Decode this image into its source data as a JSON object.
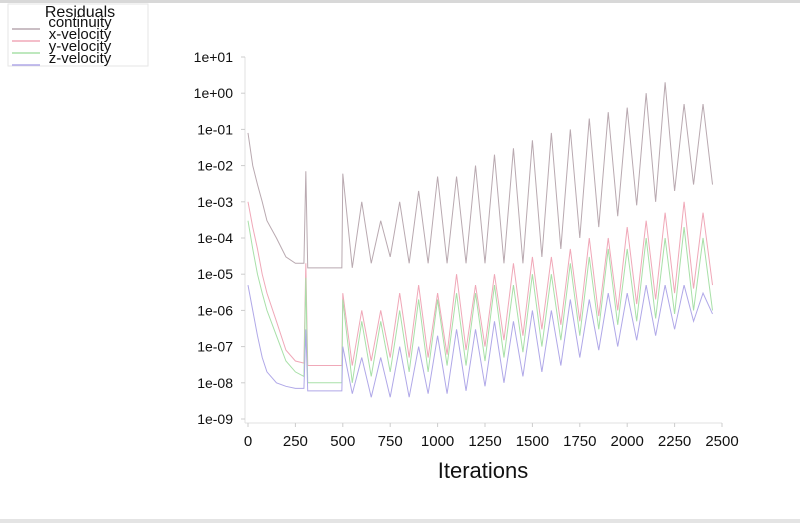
{
  "chart_data": {
    "type": "line",
    "legend_title": "Residuals",
    "x_label": "Iterations",
    "xlim": [
      0,
      2500
    ],
    "xticks": [
      0,
      250,
      500,
      750,
      1000,
      1250,
      1500,
      1750,
      2000,
      2250,
      2500
    ],
    "y_scale": "log",
    "ylim": [
      1e-09,
      10
    ],
    "yticks": [
      {
        "value": 1e-09,
        "label": "1e-09"
      },
      {
        "value": 1e-08,
        "label": "1e-08"
      },
      {
        "value": 1e-07,
        "label": "1e-07"
      },
      {
        "value": 1e-06,
        "label": "1e-06"
      },
      {
        "value": 1e-05,
        "label": "1e-05"
      },
      {
        "value": 0.0001,
        "label": "1e-04"
      },
      {
        "value": 0.001,
        "label": "1e-03"
      },
      {
        "value": 0.01,
        "label": "1e-02"
      },
      {
        "value": 0.1,
        "label": "1e-01"
      },
      {
        "value": 1,
        "label": "1e+00"
      },
      {
        "value": 10,
        "label": "1e+01"
      }
    ],
    "x": [
      0,
      25,
      50,
      75,
      100,
      150,
      200,
      250,
      295,
      305,
      315,
      400,
      495,
      500,
      550,
      600,
      650,
      700,
      750,
      800,
      850,
      900,
      950,
      1000,
      1050,
      1100,
      1150,
      1200,
      1250,
      1300,
      1350,
      1400,
      1450,
      1500,
      1550,
      1600,
      1650,
      1700,
      1750,
      1800,
      1850,
      1900,
      1950,
      2000,
      2050,
      2100,
      2150,
      2200,
      2250,
      2300,
      2350,
      2400,
      2450
    ],
    "series": [
      {
        "name": "continuity",
        "color": "#b9a9b0",
        "values": [
          0.08,
          0.01,
          0.003,
          0.001,
          0.0003,
          0.0001,
          3e-05,
          2e-05,
          2e-05,
          0.007,
          1.5e-05,
          1.5e-05,
          1.5e-05,
          0.006,
          1.5e-05,
          0.001,
          2e-05,
          0.0003,
          3e-05,
          0.001,
          2e-05,
          0.002,
          2e-05,
          0.005,
          2e-05,
          0.005,
          2e-05,
          0.01,
          2e-05,
          0.02,
          2e-05,
          0.03,
          2e-05,
          0.05,
          3e-05,
          0.08,
          5e-05,
          0.1,
          0.0001,
          0.2,
          0.0002,
          0.3,
          0.0004,
          0.4,
          0.0008,
          1,
          0.001,
          2,
          0.002,
          0.5,
          0.003,
          0.5,
          0.003
        ]
      },
      {
        "name": "x-velocity",
        "color": "#f0a8b8",
        "values": [
          0.001,
          0.0002,
          5e-05,
          1e-05,
          3e-06,
          5e-07,
          8e-08,
          4e-08,
          3.5e-08,
          2e-05,
          3e-08,
          3e-08,
          3e-08,
          3e-06,
          3e-08,
          1e-06,
          4e-08,
          1e-06,
          5e-08,
          3e-06,
          5e-08,
          5e-06,
          5e-08,
          3e-06,
          6e-08,
          1e-05,
          8e-08,
          5e-06,
          1e-07,
          1e-05,
          1.5e-07,
          2e-05,
          2e-07,
          3e-05,
          3e-07,
          3e-05,
          4e-07,
          5e-05,
          5e-07,
          0.0001,
          7e-07,
          0.0001,
          1e-06,
          0.0002,
          1.5e-06,
          0.0003,
          2e-06,
          0.0005,
          3e-06,
          0.001,
          4e-06,
          0.0005,
          5e-06
        ]
      },
      {
        "name": "y-velocity",
        "color": "#a8e0a8",
        "values": [
          0.0003,
          5e-05,
          1e-05,
          3e-06,
          1e-06,
          2e-07,
          4e-08,
          2e-08,
          1.5e-08,
          8e-06,
          1e-08,
          1e-08,
          1e-08,
          2e-06,
          1e-08,
          5e-07,
          1.5e-08,
          5e-07,
          2e-08,
          1e-06,
          2e-08,
          2e-06,
          2e-08,
          2e-06,
          3e-08,
          3e-06,
          3e-08,
          3e-06,
          4e-08,
          5e-06,
          5e-08,
          5e-06,
          7e-08,
          1e-05,
          1e-07,
          1e-05,
          1.5e-07,
          2e-05,
          2e-07,
          3e-05,
          3e-07,
          5e-05,
          4e-07,
          5e-05,
          5e-07,
          0.0001,
          6e-07,
          0.0001,
          8e-07,
          0.0002,
          1e-06,
          0.0001,
          1e-06
        ]
      },
      {
        "name": "z-velocity",
        "color": "#b0a8e8",
        "values": [
          5e-06,
          1e-06,
          2e-07,
          5e-08,
          2e-08,
          1e-08,
          8e-09,
          7e-09,
          7e-09,
          3e-07,
          6e-09,
          6e-09,
          6e-09,
          1e-07,
          5e-09,
          5e-08,
          4e-09,
          5e-08,
          4e-09,
          1e-07,
          4e-09,
          1e-07,
          5e-09,
          2e-07,
          5e-09,
          3e-07,
          6e-09,
          3e-07,
          8e-09,
          5e-07,
          1e-08,
          5e-07,
          1.5e-08,
          1e-06,
          2e-08,
          1e-06,
          3e-08,
          2e-06,
          5e-08,
          2e-06,
          8e-08,
          3e-06,
          1e-07,
          3e-06,
          1.5e-07,
          5e-06,
          2e-07,
          5e-06,
          3e-07,
          5e-06,
          5e-07,
          3e-06,
          8e-07
        ]
      }
    ]
  }
}
